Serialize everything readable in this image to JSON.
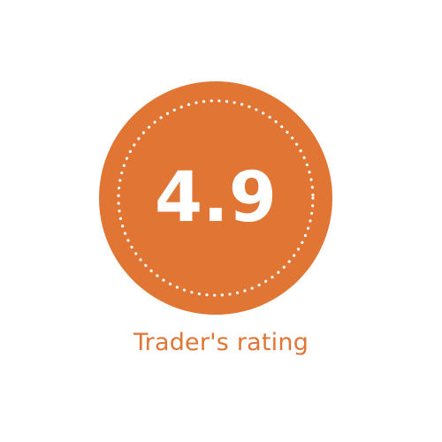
{
  "rating": {
    "value": "4.9",
    "label": "Trader's rating"
  },
  "colors": {
    "badge_fill": "#e07534",
    "dotted_ring": "#ffffff",
    "value_text": "#ffffff",
    "label_text": "#e07534",
    "background": "#ffffff"
  }
}
